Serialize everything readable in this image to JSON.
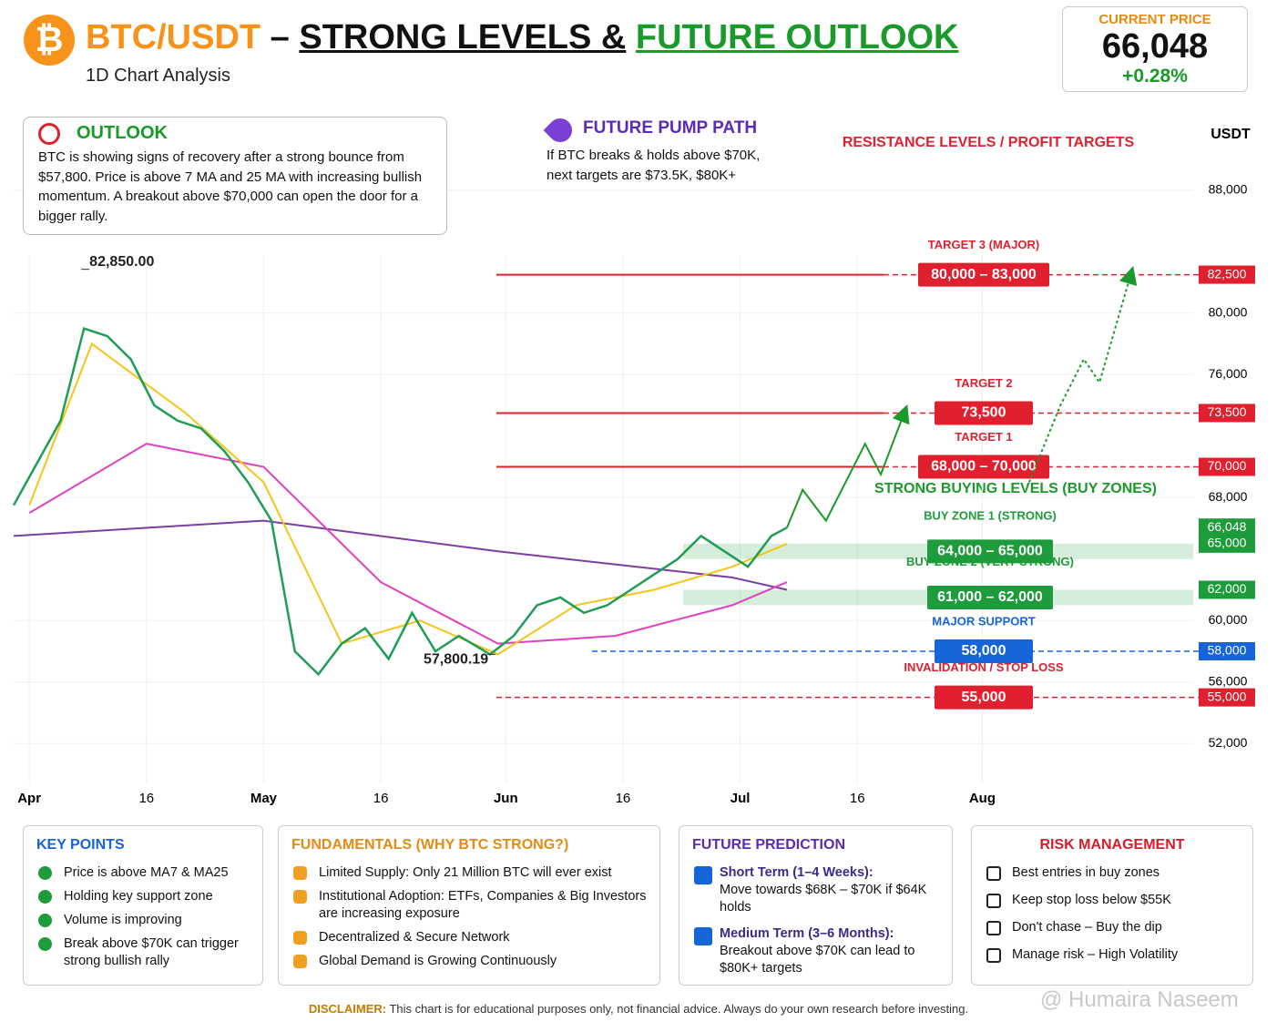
{
  "header": {
    "logo": "₿",
    "title_pair": "BTC/USDT",
    "title_dash": "–",
    "title_levels": "STRONG LEVELS &",
    "title_outlook": "FUTURE OUTLOOK",
    "subtitle": "1D Chart Analysis",
    "price_label": "CURRENT PRICE",
    "price": "66,048",
    "change": "+0.28%"
  },
  "outlook": {
    "title": "OUTLOOK",
    "text": "BTC is showing signs of recovery after a strong bounce from $57,800. Price is above 7 MA and 25 MA with increasing bullish momentum. A breakout above $70,000 can open the door for a bigger rally."
  },
  "pump": {
    "title": "FUTURE PUMP PATH",
    "lines": [
      "If BTC breaks & holds above $70K,",
      "next targets are $73.5K, $80K+"
    ]
  },
  "chart_data": {
    "type": "line",
    "unit": "USDT",
    "resistance_title": "RESISTANCE LEVELS / PROFIT TARGETS",
    "buy_title": "STRONG BUYING LEVELS (BUY ZONES)",
    "xlim": [
      -2,
      149
    ],
    "ylim": [
      50000,
      90000
    ],
    "grid": true,
    "xticks": [
      {
        "value": 0,
        "label": "Apr"
      },
      {
        "value": 15,
        "label": "16"
      },
      {
        "value": 30,
        "label": "May"
      },
      {
        "value": 45,
        "label": "16"
      },
      {
        "value": 61,
        "label": "Jun"
      },
      {
        "value": 76,
        "label": "16"
      },
      {
        "value": 91,
        "label": "Jul"
      },
      {
        "value": 106,
        "label": "16"
      },
      {
        "value": 122,
        "label": "Aug"
      }
    ],
    "yticks": [
      {
        "value": 52000,
        "label": "52,000"
      },
      {
        "value": 56000,
        "label": "56,000"
      },
      {
        "value": 60000,
        "label": "60,000"
      },
      {
        "value": 68000,
        "label": "68,000"
      },
      {
        "value": 76000,
        "label": "76,000"
      },
      {
        "value": 80000,
        "label": "80,000"
      },
      {
        "value": 88000,
        "label": "88,000"
      }
    ],
    "series": [
      {
        "color": "#7b3fa0",
        "x": [
          -2,
          30,
          60,
          90,
          97
        ],
        "values": [
          65500,
          66500,
          64500,
          62800,
          62000
        ]
      },
      {
        "color": "#e040c0",
        "x": [
          0,
          15,
          30,
          45,
          60,
          75,
          90,
          97
        ],
        "values": [
          67000,
          71500,
          70000,
          62500,
          58500,
          59000,
          61000,
          62500
        ]
      },
      {
        "color": "#f5c518",
        "x": [
          0,
          8,
          20,
          30,
          40,
          50,
          60,
          70,
          80,
          90,
          97
        ],
        "values": [
          67500,
          78000,
          73500,
          69000,
          58500,
          60000,
          57800,
          61000,
          62000,
          63500,
          65000
        ]
      },
      {
        "color": "#1f9d55",
        "x": [
          -2,
          4,
          7,
          10,
          13,
          16,
          19,
          22,
          25,
          28,
          31,
          34,
          37,
          40,
          43,
          46,
          49,
          52,
          55,
          59,
          62,
          65,
          68,
          71,
          74,
          77,
          80,
          83,
          86,
          89,
          92,
          95,
          97
        ],
        "values": [
          67500,
          73000,
          79000,
          78500,
          77000,
          74000,
          73000,
          72500,
          71000,
          69000,
          66500,
          58000,
          56500,
          58500,
          59500,
          57500,
          60500,
          58000,
          59000,
          57800,
          59000,
          61000,
          61500,
          60500,
          61000,
          62000,
          63000,
          64000,
          65500,
          64500,
          63500,
          65500,
          66048
        ]
      },
      {
        "color": "#1a9a2a",
        "dash": false,
        "x": [
          97,
          99,
          102,
          107,
          109,
          112
        ],
        "values": [
          66048,
          68500,
          66500,
          71500,
          69500,
          73500
        ]
      },
      {
        "color": "#1a9a2a",
        "dash": true,
        "x": [
          128,
          132,
          135,
          137,
          141
        ],
        "values": [
          69000,
          74000,
          77000,
          75500,
          82500
        ]
      }
    ],
    "annotations": [
      {
        "label": "82,850.00",
        "x": 7,
        "value": 82850
      },
      {
        "label": "57,800.19",
        "x": 59,
        "value": 57800.19
      }
    ],
    "current": {
      "value": 66048,
      "label": "66,048",
      "color": "#1e9b3a"
    },
    "levels": [
      {
        "name": "TARGET 3 (MAJOR)",
        "range": "80,000 – 83,000",
        "value": 82500,
        "label": "82,500",
        "color": "#e0202f"
      },
      {
        "name": "TARGET 2",
        "range": "73,500",
        "value": 73500,
        "label": "73,500",
        "color": "#e0202f"
      },
      {
        "name": "TARGET 1",
        "range": "68,000 – 70,000",
        "value": 70000,
        "label": "70,000",
        "color": "#e0202f"
      },
      {
        "name": "MAJOR SUPPORT",
        "range": "58,000",
        "value": 58000,
        "label": "58,000",
        "color": "#1565d8"
      },
      {
        "name": "INVALIDATION / STOP LOSS",
        "range": "55,000",
        "value": 55000,
        "label": "55,000",
        "color": "#e0202f"
      }
    ],
    "zones": [
      {
        "name": "BUY ZONE 1 (STRONG)",
        "range": "64,000 – 65,000",
        "low": 64000,
        "high": 65000,
        "label": "65,000",
        "color": "#1e9b3a"
      },
      {
        "name": "BUY ZONE 2 (VERY STRONG)",
        "range": "61,000 – 62,000",
        "low": 61000,
        "high": 62000,
        "label": "62,000",
        "color": "#1e9b3a"
      }
    ]
  },
  "panels": [
    {
      "title": "KEY POINTS",
      "items": [
        "Price is above MA7 & MA25",
        "Holding key support zone",
        "Volume is improving",
        "Break above $70K can trigger strong bullish rally"
      ]
    },
    {
      "title": "FUNDAMENTALS (WHY BTC STRONG?)",
      "items": [
        "Limited Supply: Only 21 Million BTC will ever exist",
        "Institutional Adoption: ETFs, Companies & Big Investors are increasing exposure",
        "Decentralized & Secure Network",
        "Global Demand is Growing Continuously"
      ]
    },
    {
      "title": "FUTURE PREDICTION",
      "items": [
        {
          "head": "Short Term (1–4 Weeks):",
          "text": "Move towards $68K – $70K if $64K holds"
        },
        {
          "head": "Medium Term (3–6 Months):",
          "text": "Breakout above $70K can lead to $80K+ targets"
        }
      ]
    },
    {
      "title": "RISK MANAGEMENT",
      "items": [
        "Best entries in buy zones",
        "Keep stop loss below $55K",
        "Don't chase – Buy the dip",
        "Manage risk – High Volatility"
      ]
    }
  ],
  "disclaimer": {
    "label": "DISCLAIMER:",
    "text": "This chart is for educational purposes only, not financial advice. Always do your own research before investing."
  },
  "watermark": "@ Humaira Naseem"
}
